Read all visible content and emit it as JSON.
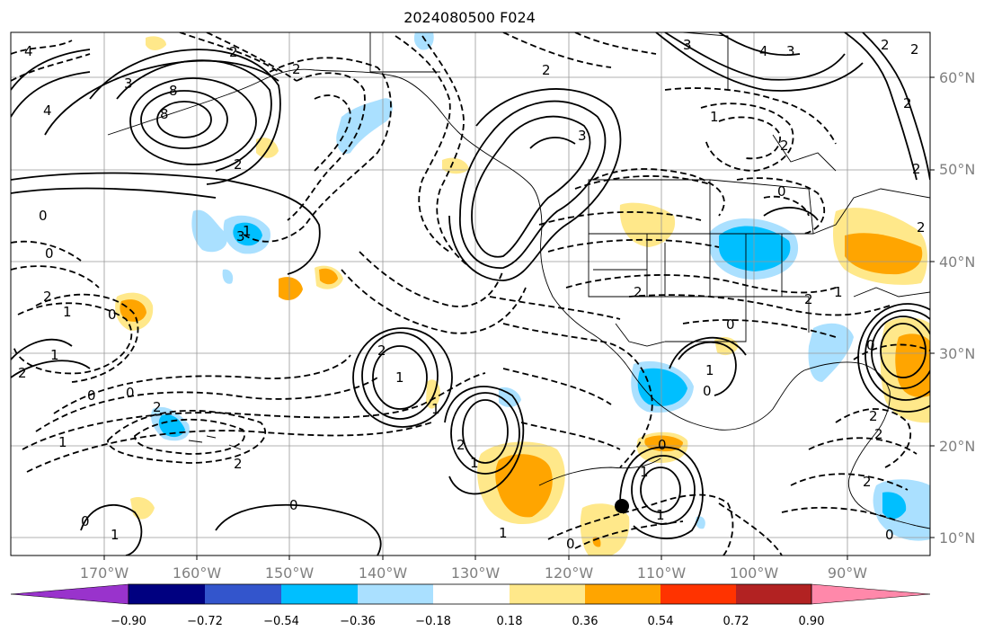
{
  "title": "2024080500 F024",
  "lat_labels": [
    "60°N",
    "50°N",
    "40°N",
    "30°N",
    "20°N",
    "10°N"
  ],
  "lon_labels": [
    "170°W",
    "160°W",
    "150°W",
    "140°W",
    "130°W",
    "120°W",
    "110°W",
    "100°W",
    "90°W"
  ],
  "colorbar": {
    "ticks": [
      "−0.90",
      "−0.72",
      "−0.54",
      "−0.36",
      "−0.18",
      "0.18",
      "0.36",
      "0.54",
      "0.72",
      "0.90"
    ],
    "colors": [
      "#9933cc",
      "#000080",
      "#3355cc",
      "#00bfff",
      "#aae0ff",
      "#ffffff",
      "#ffe88a",
      "#ffa500",
      "#ff3300",
      "#b22222",
      "#ff88aa"
    ]
  },
  "contour_labels": [
    "4",
    "3",
    "8",
    "8",
    "4",
    "2",
    "2",
    "2",
    "3",
    "2",
    "4",
    "3",
    "2",
    "0",
    "2",
    "2",
    "1",
    "2",
    "1",
    "1",
    "1",
    "0",
    "1",
    "0",
    "0",
    "2",
    "1",
    "2",
    "1",
    "0",
    "2",
    "2",
    "1",
    "1",
    "2",
    "2",
    "0",
    "0",
    "1",
    "0",
    "1",
    "0",
    "2",
    "2",
    "2",
    "0",
    "2",
    "0",
    "1",
    "0",
    "0",
    "2",
    "3",
    "2",
    "2",
    "3",
    "1",
    "0",
    "1"
  ],
  "marker": "filled-circle"
}
